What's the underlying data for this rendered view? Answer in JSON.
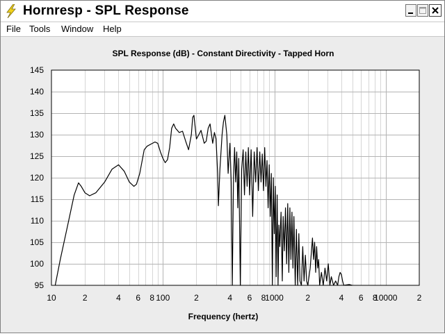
{
  "window": {
    "title": "Hornresp - SPL Response",
    "buttons": {
      "minimize": "minimize",
      "maximize": "maximize",
      "close": "close"
    }
  },
  "menu": [
    {
      "label": "File"
    },
    {
      "label": "Tools"
    },
    {
      "label": "Window"
    },
    {
      "label": "Help"
    }
  ],
  "chart_data": {
    "type": "line",
    "title": "SPL Response (dB) - Constant Directivity - Tapped Horn",
    "xlabel": "Frequency (hertz)",
    "ylabel": "",
    "x_scale": "log",
    "xlim": [
      10,
      20000
    ],
    "ylim": [
      95,
      145
    ],
    "grid": true,
    "legend": "none",
    "y_ticks": [
      "145",
      "140",
      "135",
      "130",
      "125",
      "120",
      "115",
      "110",
      "105",
      "100",
      "95"
    ],
    "x_tick_labels": [
      {
        "value": 10,
        "label": "10"
      },
      {
        "value": 20,
        "label": "2"
      },
      {
        "value": 40,
        "label": "4"
      },
      {
        "value": 60,
        "label": "6"
      },
      {
        "value": 80,
        "label": "8"
      },
      {
        "value": 100,
        "label": "100"
      },
      {
        "value": 200,
        "label": "2"
      },
      {
        "value": 400,
        "label": "4"
      },
      {
        "value": 600,
        "label": "6"
      },
      {
        "value": 800,
        "label": "8"
      },
      {
        "value": 1000,
        "label": "1000"
      },
      {
        "value": 2000,
        "label": "2"
      },
      {
        "value": 4000,
        "label": "4"
      },
      {
        "value": 6000,
        "label": "6"
      },
      {
        "value": 8000,
        "label": "8"
      },
      {
        "value": 10000,
        "label": "10000"
      },
      {
        "value": 20000,
        "label": "2"
      }
    ],
    "series": [
      {
        "color": "#000000",
        "points": [
          [
            10.8,
            94.5
          ],
          [
            12,
            101
          ],
          [
            14,
            109
          ],
          [
            16,
            116
          ],
          [
            17.5,
            118.8
          ],
          [
            18.5,
            118
          ],
          [
            20,
            116.5
          ],
          [
            22,
            115.8
          ],
          [
            25,
            116.5
          ],
          [
            30,
            119
          ],
          [
            35,
            122
          ],
          [
            40,
            123
          ],
          [
            45,
            121.5
          ],
          [
            50,
            119
          ],
          [
            55,
            118
          ],
          [
            58,
            118.5
          ],
          [
            62,
            121
          ],
          [
            68,
            126.5
          ],
          [
            72,
            127.3
          ],
          [
            78,
            127.8
          ],
          [
            85,
            128.3
          ],
          [
            90,
            128
          ],
          [
            95,
            126
          ],
          [
            100,
            124.5
          ],
          [
            105,
            123.5
          ],
          [
            110,
            124.2
          ],
          [
            115,
            127
          ],
          [
            120,
            131.5
          ],
          [
            125,
            132.5
          ],
          [
            130,
            131.5
          ],
          [
            140,
            130.5
          ],
          [
            150,
            130.8
          ],
          [
            160,
            128.5
          ],
          [
            170,
            126.5
          ],
          [
            180,
            130
          ],
          [
            185,
            134
          ],
          [
            190,
            134.5
          ],
          [
            200,
            129
          ],
          [
            210,
            130
          ],
          [
            220,
            131
          ],
          [
            235,
            128
          ],
          [
            245,
            128.5
          ],
          [
            255,
            131.5
          ],
          [
            265,
            132.5
          ],
          [
            280,
            128
          ],
          [
            290,
            130.5
          ],
          [
            300,
            129
          ],
          [
            310,
            121
          ],
          [
            315,
            113.5
          ],
          [
            325,
            122
          ],
          [
            340,
            130
          ],
          [
            350,
            133
          ],
          [
            360,
            134.5
          ],
          [
            375,
            130
          ],
          [
            385,
            121
          ],
          [
            400,
            128
          ],
          [
            410,
            119
          ],
          [
            420,
            95
          ],
          [
            430,
            120
          ],
          [
            440,
            127
          ],
          [
            450,
            119
          ],
          [
            460,
            126
          ],
          [
            470,
            113
          ],
          [
            480,
            124.5
          ],
          [
            495,
            95
          ],
          [
            510,
            122
          ],
          [
            525,
            126.5
          ],
          [
            540,
            116
          ],
          [
            555,
            126
          ],
          [
            570,
            118
          ],
          [
            585,
            127
          ],
          [
            600,
            116
          ],
          [
            620,
            126.5
          ],
          [
            640,
            111
          ],
          [
            660,
            126
          ],
          [
            680,
            119
          ],
          [
            700,
            127
          ],
          [
            720,
            117
          ],
          [
            740,
            126
          ],
          [
            760,
            119
          ],
          [
            780,
            125.5
          ],
          [
            800,
            117
          ],
          [
            820,
            127
          ],
          [
            840,
            118
          ],
          [
            860,
            124
          ],
          [
            880,
            113
          ],
          [
            900,
            123
          ],
          [
            920,
            111
          ],
          [
            940,
            121
          ],
          [
            960,
            95
          ],
          [
            980,
            120
          ],
          [
            1000,
            107
          ],
          [
            1020,
            118
          ],
          [
            1040,
            97
          ],
          [
            1060,
            116
          ],
          [
            1080,
            95
          ],
          [
            1100,
            109
          ],
          [
            1120,
            104
          ],
          [
            1150,
            112
          ],
          [
            1180,
            96
          ],
          [
            1200,
            111
          ],
          [
            1230,
            103
          ],
          [
            1260,
            113
          ],
          [
            1290,
            100
          ],
          [
            1320,
            114
          ],
          [
            1350,
            98
          ],
          [
            1380,
            113
          ],
          [
            1410,
            101
          ],
          [
            1440,
            112
          ],
          [
            1470,
            99
          ],
          [
            1500,
            111
          ],
          [
            1540,
            95
          ],
          [
            1580,
            108
          ],
          [
            1620,
            95
          ],
          [
            1660,
            107
          ],
          [
            1700,
            96
          ],
          [
            1750,
            95
          ],
          [
            1800,
            104
          ],
          [
            1850,
            96
          ],
          [
            1900,
            102
          ],
          [
            1950,
            96
          ],
          [
            2000,
            95
          ],
          [
            2100,
            99
          ],
          [
            2200,
            106
          ],
          [
            2250,
            101
          ],
          [
            2300,
            105
          ],
          [
            2350,
            98
          ],
          [
            2400,
            104
          ],
          [
            2450,
            99
          ],
          [
            2500,
            101
          ],
          [
            2550,
            95
          ],
          [
            2650,
            98
          ],
          [
            2750,
            95
          ],
          [
            2850,
            99
          ],
          [
            2950,
            96
          ],
          [
            3050,
            100
          ],
          [
            3150,
            95
          ],
          [
            3250,
            97
          ],
          [
            3400,
            95
          ],
          [
            3550,
            96
          ],
          [
            3700,
            95
          ],
          [
            3800,
            97
          ],
          [
            3900,
            98
          ],
          [
            4000,
            97.5
          ],
          [
            4100,
            96
          ],
          [
            4200,
            95
          ],
          [
            4700,
            95.2
          ],
          [
            5000,
            95
          ]
        ]
      }
    ]
  }
}
